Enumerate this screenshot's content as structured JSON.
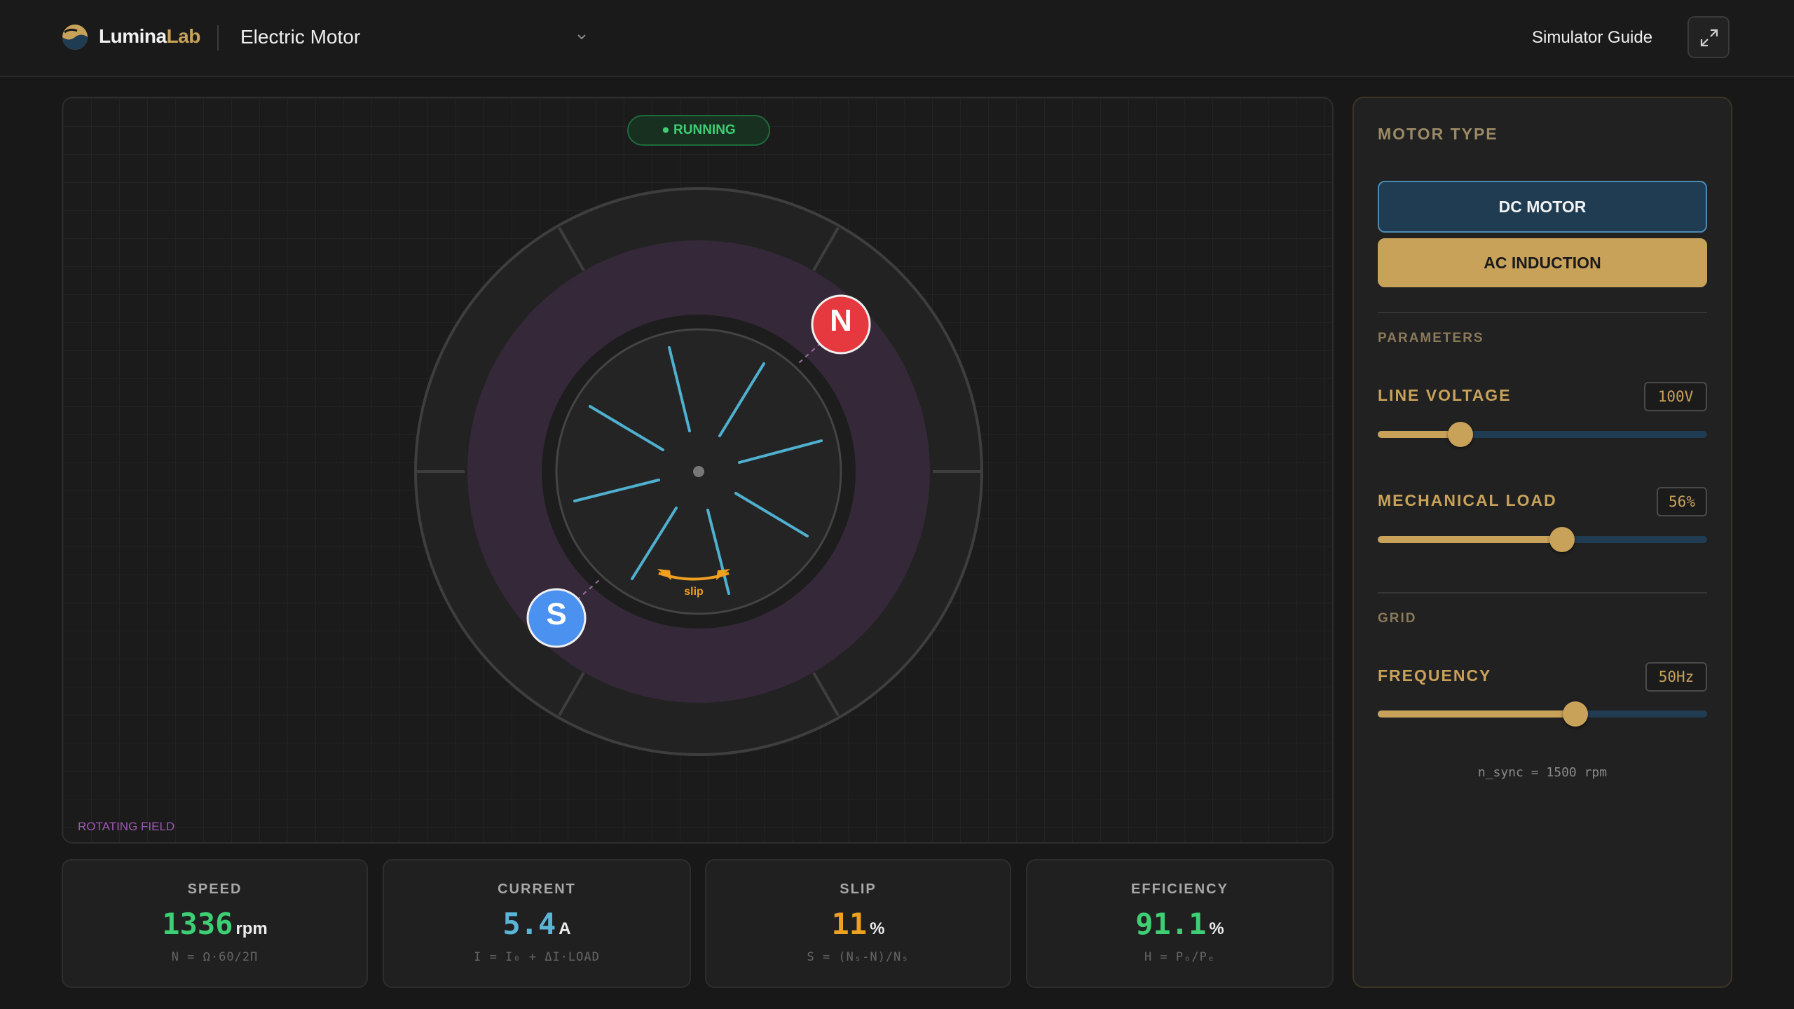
{
  "header": {
    "brand_primary": "Lumina",
    "brand_accent": "Lab",
    "app_title": "Electric Motor",
    "guide_label": "Simulator Guide",
    "icons": {
      "logo": "lumina-logo-icon",
      "chevron": "chevron-down-icon",
      "expand": "expand-icon"
    }
  },
  "stage": {
    "status": "● RUNNING",
    "north_label": "N",
    "south_label": "S",
    "slip_label": "slip",
    "field_label": "ROTATING FIELD"
  },
  "metrics": [
    {
      "label": "SPEED",
      "value": "1336",
      "unit": "rpm",
      "formula": "N = Ω·60/2Π",
      "color": "#3ecf75"
    },
    {
      "label": "CURRENT",
      "value": "5.4",
      "unit": "A",
      "formula": "I = I₀ + ΔI·LOAD",
      "color": "#5bb5d8"
    },
    {
      "label": "SLIP",
      "value": "11",
      "unit": "%",
      "formula": "S = (Nₛ-N)/Nₛ",
      "color": "#f0a020"
    },
    {
      "label": "EFFICIENCY",
      "value": "91.1",
      "unit": "%",
      "formula": "Η = Pₒ/Pₑ",
      "color": "#3ecf75"
    }
  ],
  "panel": {
    "motor_type_title": "MOTOR TYPE",
    "dc_label": "DC MOTOR",
    "ac_label": "AC INDUCTION",
    "parameters_title": "PARAMETERS",
    "line_voltage": {
      "label": "LINE VOLTAGE",
      "value": "100V",
      "fraction": 0.25
    },
    "mechanical_load": {
      "label": "MECHANICAL LOAD",
      "value": "56%",
      "fraction": 0.56
    },
    "grid_title": "GRID",
    "frequency": {
      "label": "FREQUENCY",
      "value": "50Hz",
      "fraction": 0.6
    },
    "sync_note": "n_sync = 1500 rpm"
  },
  "colors": {
    "accent": "#c9a25a",
    "running": "#3ecf75",
    "north_pole": "#e5383f",
    "south_pole": "#4b91f0",
    "rotor_bar": "#4fb0d0",
    "field_ring": "#3a2a3a"
  }
}
